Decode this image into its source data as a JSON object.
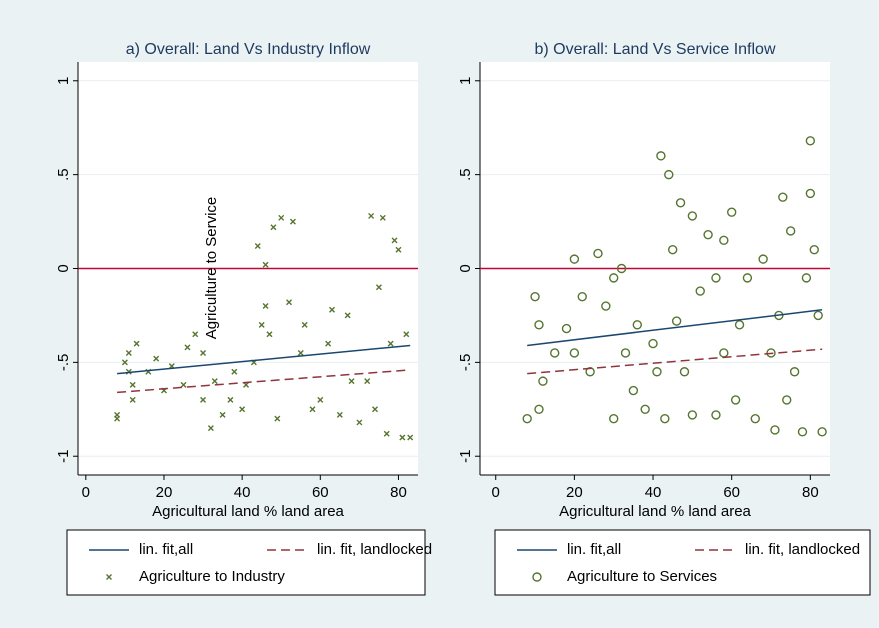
{
  "chart_data": [
    {
      "type": "scatter",
      "title": "a) Overall: Land Vs Industry Inflow",
      "xlabel": "Agricultural land % land area",
      "annotation": "Agriculture to Service",
      "xlim": [
        -2,
        85
      ],
      "ylim": [
        -1.1,
        1.1
      ],
      "xticks": [
        0,
        20,
        40,
        60,
        80
      ],
      "yticks": [
        -1,
        {
          "value": -0.5,
          "label": "-.5"
        },
        0,
        {
          "value": 0.5,
          "label": ".5"
        },
        1
      ],
      "reference_line": {
        "value": 0,
        "color": "#c10534"
      },
      "series": [
        {
          "name": "lin. fit,all",
          "type": "line",
          "color": "#1a476f",
          "x": [
            8,
            83
          ],
          "values": [
            -0.56,
            -0.41
          ]
        },
        {
          "name": "lin. fit, landlocked",
          "type": "line",
          "dashed": true,
          "color": "#90353b",
          "x": [
            8,
            83
          ],
          "values": [
            -0.66,
            -0.54
          ]
        },
        {
          "name": "Agriculture to Industry",
          "type": "scatter",
          "marker": "x",
          "color": "#55752f",
          "x": [
            8,
            8,
            10,
            11,
            11,
            12,
            12,
            13,
            16,
            18,
            20,
            22,
            25,
            26,
            28,
            30,
            30,
            32,
            33,
            35,
            37,
            38,
            40,
            41,
            43,
            44,
            45,
            46,
            46,
            47,
            48,
            49,
            50,
            52,
            53,
            55,
            56,
            58,
            60,
            62,
            63,
            65,
            67,
            68,
            70,
            72,
            73,
            74,
            75,
            76,
            77,
            78,
            79,
            80,
            81,
            82,
            83
          ],
          "values": [
            -0.78,
            -0.8,
            -0.5,
            -0.45,
            -0.55,
            -0.62,
            -0.7,
            -0.4,
            -0.55,
            -0.48,
            -0.65,
            -0.52,
            -0.62,
            -0.42,
            -0.35,
            -0.7,
            -0.45,
            -0.85,
            -0.6,
            -0.78,
            -0.7,
            -0.55,
            -0.75,
            -0.62,
            -0.5,
            0.12,
            -0.3,
            0.02,
            -0.2,
            -0.35,
            0.22,
            -0.8,
            0.27,
            -0.18,
            0.25,
            -0.45,
            -0.3,
            -0.75,
            -0.7,
            -0.4,
            -0.22,
            -0.78,
            -0.25,
            -0.6,
            -0.82,
            -0.6,
            0.28,
            -0.75,
            -0.1,
            0.27,
            -0.88,
            -0.4,
            0.15,
            0.1,
            -0.9,
            -0.35,
            -0.9
          ]
        }
      ]
    },
    {
      "type": "scatter",
      "title": "b) Overall: Land Vs Service Inflow",
      "xlabel": "Agricultural land % land area",
      "xlim": [
        -4,
        85
      ],
      "ylim": [
        -1.1,
        1.1
      ],
      "xticks": [
        0,
        20,
        40,
        60,
        80
      ],
      "yticks": [
        -1,
        {
          "value": -0.5,
          "label": "-.5"
        },
        0,
        {
          "value": 0.5,
          "label": ".5"
        },
        1
      ],
      "reference_line": {
        "value": 0,
        "color": "#c10534"
      },
      "series": [
        {
          "name": "lin. fit,all",
          "type": "line",
          "color": "#1a476f",
          "x": [
            8,
            83
          ],
          "values": [
            -0.41,
            -0.22
          ]
        },
        {
          "name": "lin. fit, landlocked",
          "type": "line",
          "dashed": true,
          "color": "#90353b",
          "x": [
            8,
            83
          ],
          "values": [
            -0.56,
            -0.43
          ]
        },
        {
          "name": "Agriculture to Services",
          "type": "scatter",
          "marker": "circle",
          "color": "#55752f",
          "x": [
            8,
            10,
            11,
            11,
            12,
            15,
            18,
            20,
            20,
            22,
            24,
            26,
            28,
            30,
            30,
            32,
            33,
            35,
            36,
            38,
            40,
            41,
            42,
            43,
            44,
            45,
            46,
            47,
            48,
            50,
            50,
            52,
            54,
            56,
            56,
            58,
            58,
            60,
            61,
            62,
            64,
            66,
            68,
            70,
            71,
            72,
            73,
            74,
            75,
            76,
            78,
            79,
            80,
            80,
            81,
            82,
            83
          ],
          "values": [
            -0.8,
            -0.15,
            -0.3,
            -0.75,
            -0.6,
            -0.45,
            -0.32,
            0.05,
            -0.45,
            -0.15,
            -0.55,
            0.08,
            -0.2,
            -0.8,
            -0.05,
            0,
            -0.45,
            -0.65,
            -0.3,
            -0.75,
            -0.4,
            -0.55,
            0.6,
            -0.8,
            0.5,
            0.1,
            -0.28,
            0.35,
            -0.55,
            0.28,
            -0.78,
            -0.12,
            0.18,
            -0.05,
            -0.78,
            0.15,
            -0.45,
            0.3,
            -0.7,
            -0.3,
            -0.05,
            -0.8,
            0.05,
            -0.45,
            -0.86,
            -0.25,
            0.38,
            -0.7,
            0.2,
            -0.55,
            -0.87,
            -0.05,
            0.68,
            0.4,
            0.1,
            -0.25,
            -0.87
          ]
        }
      ]
    }
  ]
}
